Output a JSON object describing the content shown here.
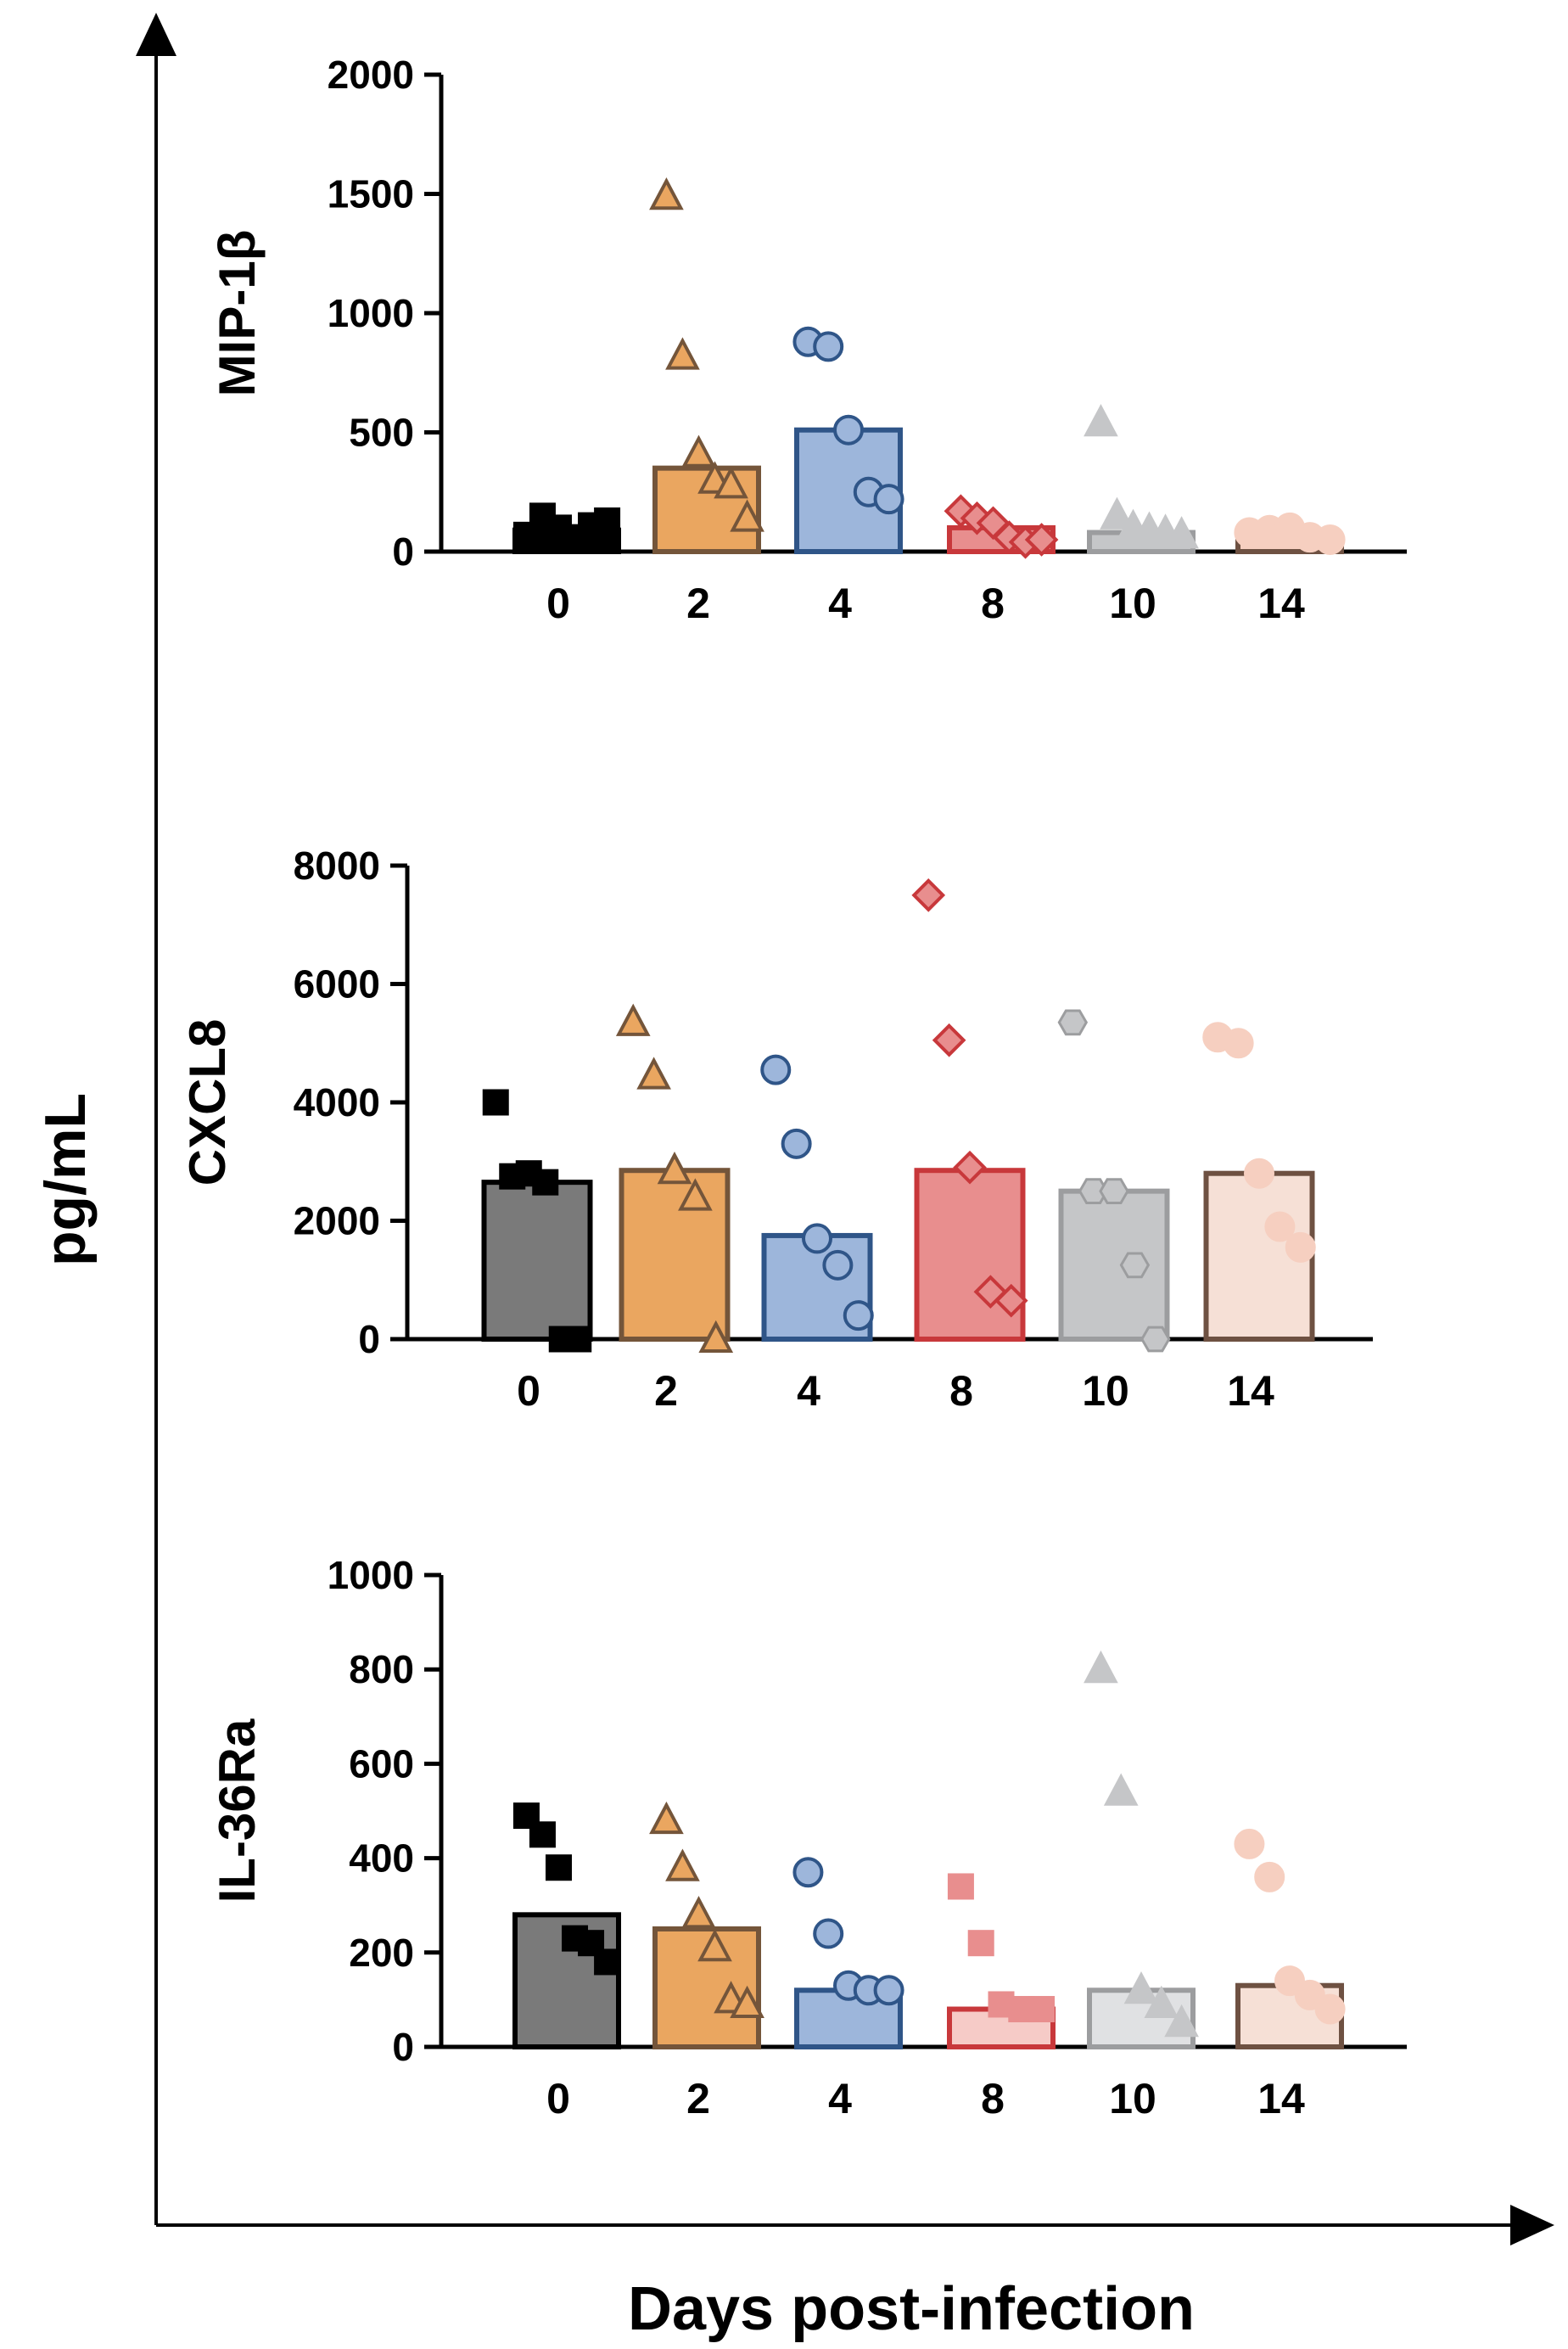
{
  "figure": {
    "ylabel": "pg/mL",
    "xlabel": "Days post-infection"
  },
  "chart_data": [
    {
      "type": "bar",
      "title": "",
      "ylabel": "MIP-1β",
      "xlabel": "",
      "ylim": [
        0,
        2000
      ],
      "yticks": [
        0,
        500,
        1000,
        1500,
        2000
      ],
      "categories": [
        "0",
        "2",
        "4",
        "8",
        "10",
        "14"
      ],
      "values": [
        90,
        350,
        510,
        100,
        80,
        60
      ],
      "points": [
        [
          70,
          150,
          100,
          60,
          110,
          130
        ],
        [
          1490,
          820,
          410,
          300,
          280,
          140
        ],
        [
          880,
          860,
          510,
          250,
          220
        ],
        [
          170,
          140,
          120,
          60,
          40,
          50
        ],
        [
          540,
          150,
          100,
          90,
          80,
          70
        ],
        [
          80,
          90,
          100,
          60,
          50
        ]
      ],
      "markers": [
        "square",
        "triangle-open",
        "circle-open",
        "diamond-open",
        "triangle",
        "circle"
      ],
      "colors": [
        {
          "fill": "#000000",
          "stroke": "#000000"
        },
        {
          "fill": "#EAA660",
          "stroke": "#74553A"
        },
        {
          "fill": "#9DB6DB",
          "stroke": "#2F5588"
        },
        {
          "fill": "#E88E8E",
          "stroke": "#C8383B"
        },
        {
          "fill": "#C5C6C8",
          "stroke": "#9C9D9F"
        },
        {
          "fill": "#F6CFC0",
          "stroke": "#6E5142"
        }
      ]
    },
    {
      "type": "bar",
      "title": "",
      "ylabel": "CXCL8",
      "xlabel": "",
      "ylim": [
        0,
        8000
      ],
      "yticks": [
        0,
        2000,
        4000,
        6000,
        8000
      ],
      "categories": [
        "0",
        "2",
        "4",
        "8",
        "10",
        "14"
      ],
      "values": [
        2650,
        2850,
        1750,
        2850,
        2500,
        2800
      ],
      "points": [
        [
          4000,
          2750,
          2800,
          2650,
          0,
          0
        ],
        [
          5350,
          4450,
          2850,
          2400,
          0
        ],
        [
          4550,
          3300,
          1700,
          1250,
          400
        ],
        [
          7500,
          5050,
          2900,
          800,
          650
        ],
        [
          5350,
          2500,
          2500,
          1250,
          0
        ],
        [
          5100,
          5000,
          2800,
          1900,
          1550
        ]
      ],
      "markers": [
        "square",
        "triangle-open",
        "circle-open",
        "diamond-open",
        "hexagon",
        "circle"
      ],
      "colors": [
        {
          "fill": "#7A7A7A",
          "stroke": "#000000"
        },
        {
          "fill": "#EAA660",
          "stroke": "#74553A"
        },
        {
          "fill": "#9DB6DB",
          "stroke": "#2F5588"
        },
        {
          "fill": "#E88E8E",
          "stroke": "#C8383B"
        },
        {
          "fill": "#C5C6C8",
          "stroke": "#9C9D9F"
        },
        {
          "fill": "#F6E0D6",
          "stroke": "#6E5142"
        }
      ]
    },
    {
      "type": "bar",
      "title": "",
      "ylabel": "IL-36Ra",
      "xlabel": "",
      "ylim": [
        0,
        1000
      ],
      "yticks": [
        0,
        200,
        400,
        600,
        800,
        1000
      ],
      "categories": [
        "0",
        "2",
        "4",
        "8",
        "10",
        "14"
      ],
      "values": [
        280,
        250,
        120,
        80,
        120,
        130
      ],
      "points": [
        [
          490,
          450,
          380,
          230,
          220,
          180
        ],
        [
          480,
          380,
          280,
          210,
          100,
          90
        ],
        [
          370,
          240,
          130,
          120,
          120
        ],
        [
          340,
          220,
          90,
          80,
          80
        ],
        [
          800,
          540,
          120,
          90,
          50
        ],
        [
          430,
          360,
          140,
          110,
          80
        ]
      ],
      "markers": [
        "square",
        "triangle-open",
        "circle-open",
        "square",
        "triangle",
        "circle"
      ],
      "colors": [
        {
          "fill": "#7A7A7A",
          "stroke": "#000000"
        },
        {
          "fill": "#EAA660",
          "stroke": "#74553A"
        },
        {
          "fill": "#9DB6DB",
          "stroke": "#2F5588"
        },
        {
          "fill": "#F6CBC7",
          "stroke": "#C8383B"
        },
        {
          "fill": "#E0E1E3",
          "stroke": "#9C9D9F"
        },
        {
          "fill": "#F6E0D6",
          "stroke": "#6E5142"
        }
      ]
    }
  ]
}
